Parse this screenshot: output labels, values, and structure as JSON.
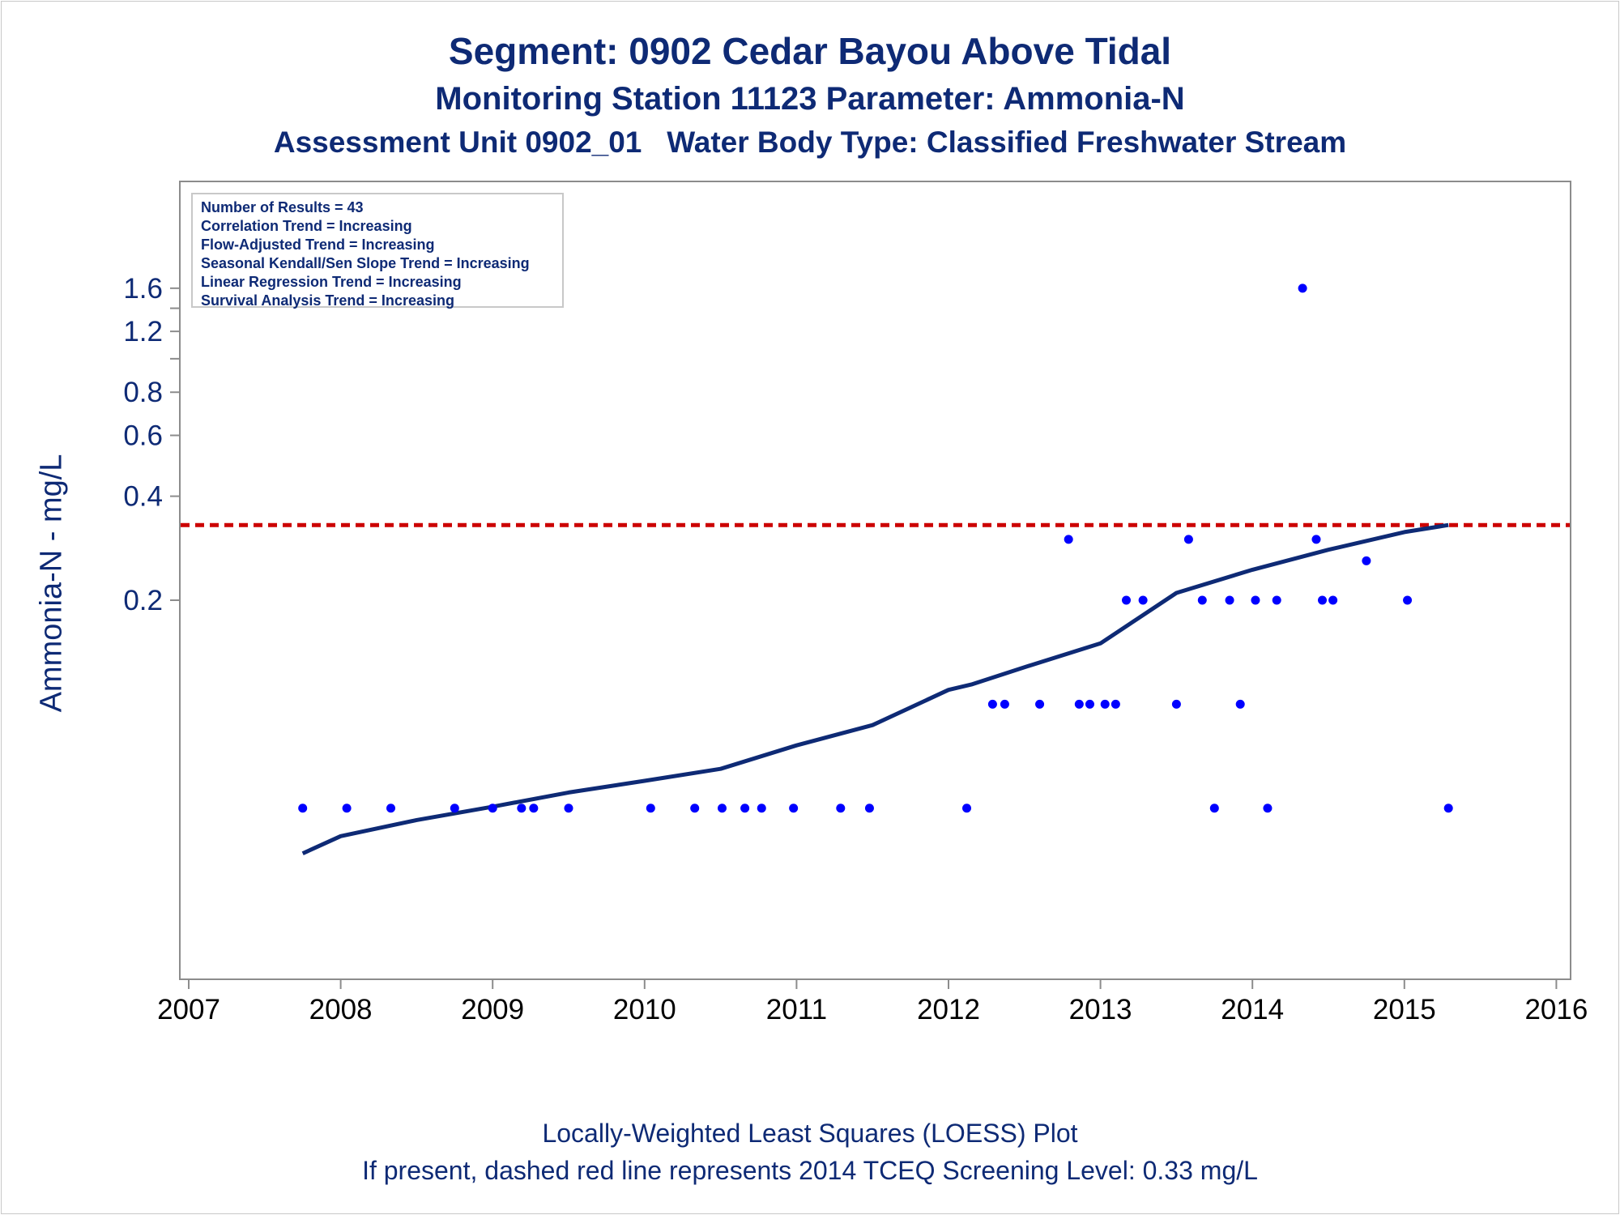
{
  "titles": {
    "line1": "Segment: 0902  Cedar Bayou Above Tidal",
    "line2": "Monitoring Station 11123 Parameter: Ammonia-N",
    "line3": "Assessment Unit 0902_01   Water Body Type: Classified Freshwater Stream"
  },
  "stats_box": {
    "lines": [
      "Number of Results = 43",
      "Correlation Trend = Increasing",
      "Flow-Adjusted Trend = Increasing",
      "Seasonal Kendall/Sen Slope Trend = Increasing",
      "Linear Regression Trend = Increasing",
      "Survival Analysis Trend = Increasing"
    ]
  },
  "footnotes": {
    "line1": "Locally-Weighted Least Squares (LOESS) Plot",
    "line2": "If present, dashed red line represents 2014 TCEQ Screening Level: 0.33 mg/L"
  },
  "colors": {
    "text": "#0e2a75",
    "points": "#0000ff",
    "loess": "#0e2a75",
    "screening": "#cc0000",
    "axis": "#8c8c8c"
  },
  "chart_data": {
    "type": "scatter",
    "xlabel": "",
    "ylabel": "Ammonia-N - mg/L",
    "x_scale": "time (years)",
    "y_scale": "log",
    "xlim": [
      2007,
      2016
    ],
    "x_ticks": [
      "2007",
      "2008",
      "2009",
      "2010",
      "2011",
      "2012",
      "2013",
      "2014",
      "2015",
      "2016"
    ],
    "y_tick_labels": [
      "0.2",
      "0.4",
      "0.6",
      "0.8",
      "1.2",
      "1.6"
    ],
    "y_tick_values": [
      0.2,
      0.4,
      0.6,
      0.8,
      1.2,
      1.6
    ],
    "y_unlabeled_ticks": [
      1.0,
      1.4
    ],
    "grid": false,
    "legend": "none",
    "points": [
      {
        "x": 2007.75,
        "y": 0.05
      },
      {
        "x": 2008.04,
        "y": 0.05
      },
      {
        "x": 2008.33,
        "y": 0.05
      },
      {
        "x": 2008.75,
        "y": 0.05
      },
      {
        "x": 2009.0,
        "y": 0.05
      },
      {
        "x": 2009.19,
        "y": 0.05
      },
      {
        "x": 2009.27,
        "y": 0.05
      },
      {
        "x": 2009.5,
        "y": 0.05
      },
      {
        "x": 2010.04,
        "y": 0.05
      },
      {
        "x": 2010.33,
        "y": 0.05
      },
      {
        "x": 2010.51,
        "y": 0.05
      },
      {
        "x": 2010.66,
        "y": 0.05
      },
      {
        "x": 2010.77,
        "y": 0.05
      },
      {
        "x": 2010.98,
        "y": 0.05
      },
      {
        "x": 2011.29,
        "y": 0.05
      },
      {
        "x": 2011.48,
        "y": 0.05
      },
      {
        "x": 2012.12,
        "y": 0.05
      },
      {
        "x": 2012.29,
        "y": 0.1
      },
      {
        "x": 2012.37,
        "y": 0.1
      },
      {
        "x": 2012.6,
        "y": 0.1
      },
      {
        "x": 2012.79,
        "y": 0.3
      },
      {
        "x": 2012.86,
        "y": 0.1
      },
      {
        "x": 2012.93,
        "y": 0.1
      },
      {
        "x": 2013.03,
        "y": 0.1
      },
      {
        "x": 2013.1,
        "y": 0.1
      },
      {
        "x": 2013.17,
        "y": 0.2
      },
      {
        "x": 2013.28,
        "y": 0.2
      },
      {
        "x": 2013.5,
        "y": 0.1
      },
      {
        "x": 2013.58,
        "y": 0.3
      },
      {
        "x": 2013.67,
        "y": 0.2
      },
      {
        "x": 2013.75,
        "y": 0.05
      },
      {
        "x": 2013.85,
        "y": 0.2
      },
      {
        "x": 2013.92,
        "y": 0.1
      },
      {
        "x": 2014.02,
        "y": 0.2
      },
      {
        "x": 2014.1,
        "y": 0.05
      },
      {
        "x": 2014.16,
        "y": 0.2
      },
      {
        "x": 2014.33,
        "y": 1.6
      },
      {
        "x": 2014.42,
        "y": 0.3
      },
      {
        "x": 2014.46,
        "y": 0.2
      },
      {
        "x": 2014.53,
        "y": 0.2
      },
      {
        "x": 2014.75,
        "y": 0.26
      },
      {
        "x": 2015.02,
        "y": 0.2
      },
      {
        "x": 2015.29,
        "y": 0.05
      }
    ],
    "loess": [
      {
        "x": 2007.75,
        "y": 0.037
      },
      {
        "x": 2008.0,
        "y": 0.0415
      },
      {
        "x": 2008.5,
        "y": 0.0462
      },
      {
        "x": 2009.0,
        "y": 0.0505
      },
      {
        "x": 2009.5,
        "y": 0.0555
      },
      {
        "x": 2010.0,
        "y": 0.06
      },
      {
        "x": 2010.5,
        "y": 0.065
      },
      {
        "x": 2011.0,
        "y": 0.076
      },
      {
        "x": 2011.5,
        "y": 0.087
      },
      {
        "x": 2012.0,
        "y": 0.11
      },
      {
        "x": 2012.15,
        "y": 0.114
      },
      {
        "x": 2012.5,
        "y": 0.128
      },
      {
        "x": 2013.0,
        "y": 0.15
      },
      {
        "x": 2013.5,
        "y": 0.21
      },
      {
        "x": 2014.0,
        "y": 0.245
      },
      {
        "x": 2014.5,
        "y": 0.28
      },
      {
        "x": 2015.0,
        "y": 0.315
      },
      {
        "x": 2015.29,
        "y": 0.33
      }
    ],
    "reference_line": {
      "y": 0.33,
      "style": "dashed",
      "color": "#cc0000"
    }
  }
}
